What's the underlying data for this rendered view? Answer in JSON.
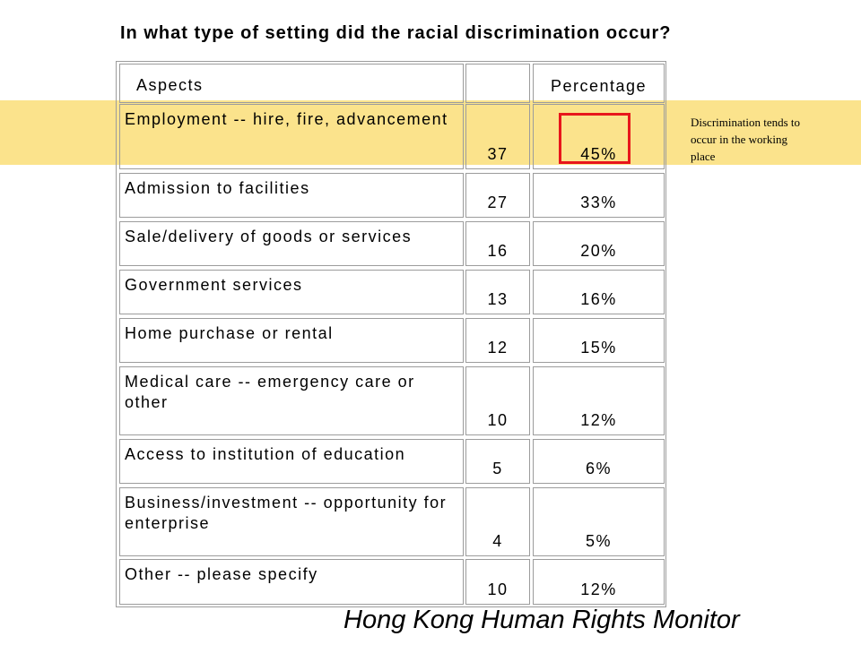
{
  "title": "In what type of setting did the racial discrimination occur?",
  "table": {
    "header": {
      "aspect": "Aspects",
      "count": "",
      "percentage": "Percentage"
    },
    "rows": [
      {
        "aspect": "Employment -- hire, fire, advancement",
        "count": "37",
        "percentage": "45%"
      },
      {
        "aspect": "Admission to facilities",
        "count": "27",
        "percentage": "33%"
      },
      {
        "aspect": "Sale/delivery of goods or services",
        "count": "16",
        "percentage": "20%"
      },
      {
        "aspect": "Government services",
        "count": "13",
        "percentage": "16%"
      },
      {
        "aspect": "Home purchase or rental",
        "count": "12",
        "percentage": "15%"
      },
      {
        "aspect": "Medical care -- emergency care or other",
        "count": "10",
        "percentage": "12%"
      },
      {
        "aspect": "Access to institution of education",
        "count": "5",
        "percentage": "6%"
      },
      {
        "aspect": "Business/investment -- opportunity for enterprise",
        "count": "4",
        "percentage": "5%"
      },
      {
        "aspect": "Other -- please specify",
        "count": "10",
        "percentage": "12%"
      }
    ]
  },
  "annotation": "Discrimination tends to occur in the working place",
  "footer": "Hong Kong Human Rights Monitor",
  "colors": {
    "highlight": "#fbe38c",
    "emphasis_box": "#e8161b",
    "grid": "#9c9c9c"
  }
}
